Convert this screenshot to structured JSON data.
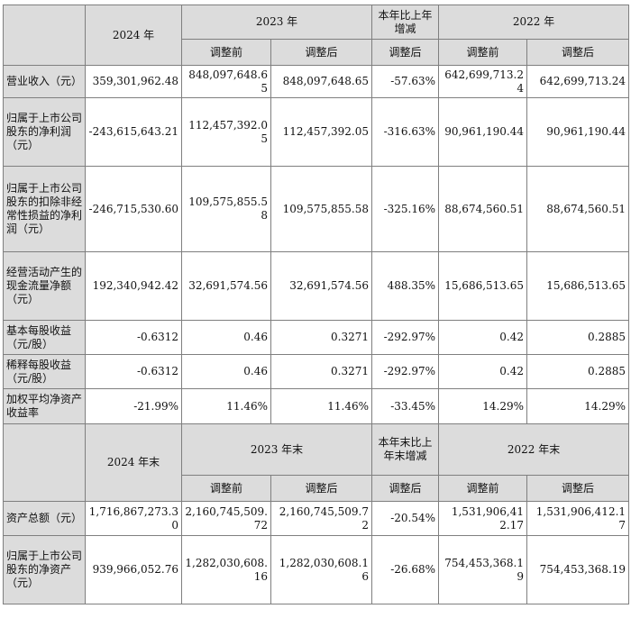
{
  "income_table": {
    "header": {
      "col_2024": "2024 年",
      "col_2023": "2023 年",
      "col_change": "本年比上年增减",
      "col_2022": "2022 年",
      "before_adjust": "调整前",
      "after_adjust": "调整后"
    },
    "rows": [
      {
        "label": "营业收入（元）",
        "v2024": "359,301,962.48",
        "v2023_before": "848,097,648.65",
        "v2023_after": "848,097,648.65",
        "change": "-57.63%",
        "v2022_before": "642,699,713.24",
        "v2022_after": "642,699,713.24"
      },
      {
        "label": "归属于上市公司股东的净利润（元）",
        "v2024": "-243,615,643.21",
        "v2023_before": "112,457,392.05",
        "v2023_after": "112,457,392.05",
        "change": "-316.63%",
        "v2022_before": "90,961,190.44",
        "v2022_after": "90,961,190.44"
      },
      {
        "label": "归属于上市公司股东的扣除非经常性损益的净利润（元）",
        "v2024": "-246,715,530.60",
        "v2023_before": "109,575,855.58",
        "v2023_after": "109,575,855.58",
        "change": "-325.16%",
        "v2022_before": "88,674,560.51",
        "v2022_after": "88,674,560.51"
      },
      {
        "label": "经营活动产生的现金流量净额（元）",
        "v2024": "192,340,942.42",
        "v2023_before": "32,691,574.56",
        "v2023_after": "32,691,574.56",
        "change": "488.35%",
        "v2022_before": "15,686,513.65",
        "v2022_after": "15,686,513.65"
      },
      {
        "label": "基本每股收益（元/股）",
        "v2024": "-0.6312",
        "v2023_before": "0.46",
        "v2023_after": "0.3271",
        "change": "-292.97%",
        "v2022_before": "0.42",
        "v2022_after": "0.2885"
      },
      {
        "label": "稀释每股收益（元/股）",
        "v2024": "-0.6312",
        "v2023_before": "0.46",
        "v2023_after": "0.3271",
        "change": "-292.97%",
        "v2022_before": "0.42",
        "v2022_after": "0.2885"
      },
      {
        "label": "加权平均净资产收益率",
        "v2024": "-21.99%",
        "v2023_before": "11.46%",
        "v2023_after": "11.46%",
        "change": "-33.45%",
        "v2022_before": "14.29%",
        "v2022_after": "14.29%"
      }
    ]
  },
  "balance_table": {
    "header": {
      "col_2024": "2024 年末",
      "col_2023": "2023 年末",
      "col_change": "本年末比上年末增减",
      "col_2022": "2022 年末",
      "before_adjust": "调整前",
      "after_adjust": "调整后"
    },
    "rows": [
      {
        "label": "资产总额（元）",
        "v2024": "1,716,867,273.30",
        "v2023_before": "2,160,745,509.72",
        "v2023_after": "2,160,745,509.72",
        "change": "-20.54%",
        "v2022_before": "1,531,906,412.17",
        "v2022_after": "1,531,906,412.17"
      },
      {
        "label": "归属于上市公司股东的净资产（元）",
        "v2024": "939,966,052.76",
        "v2023_before": "1,282,030,608.16",
        "v2023_after": "1,282,030,608.16",
        "change": "-26.68%",
        "v2022_before": "754,453,368.19",
        "v2022_after": "754,453,368.19"
      }
    ]
  }
}
